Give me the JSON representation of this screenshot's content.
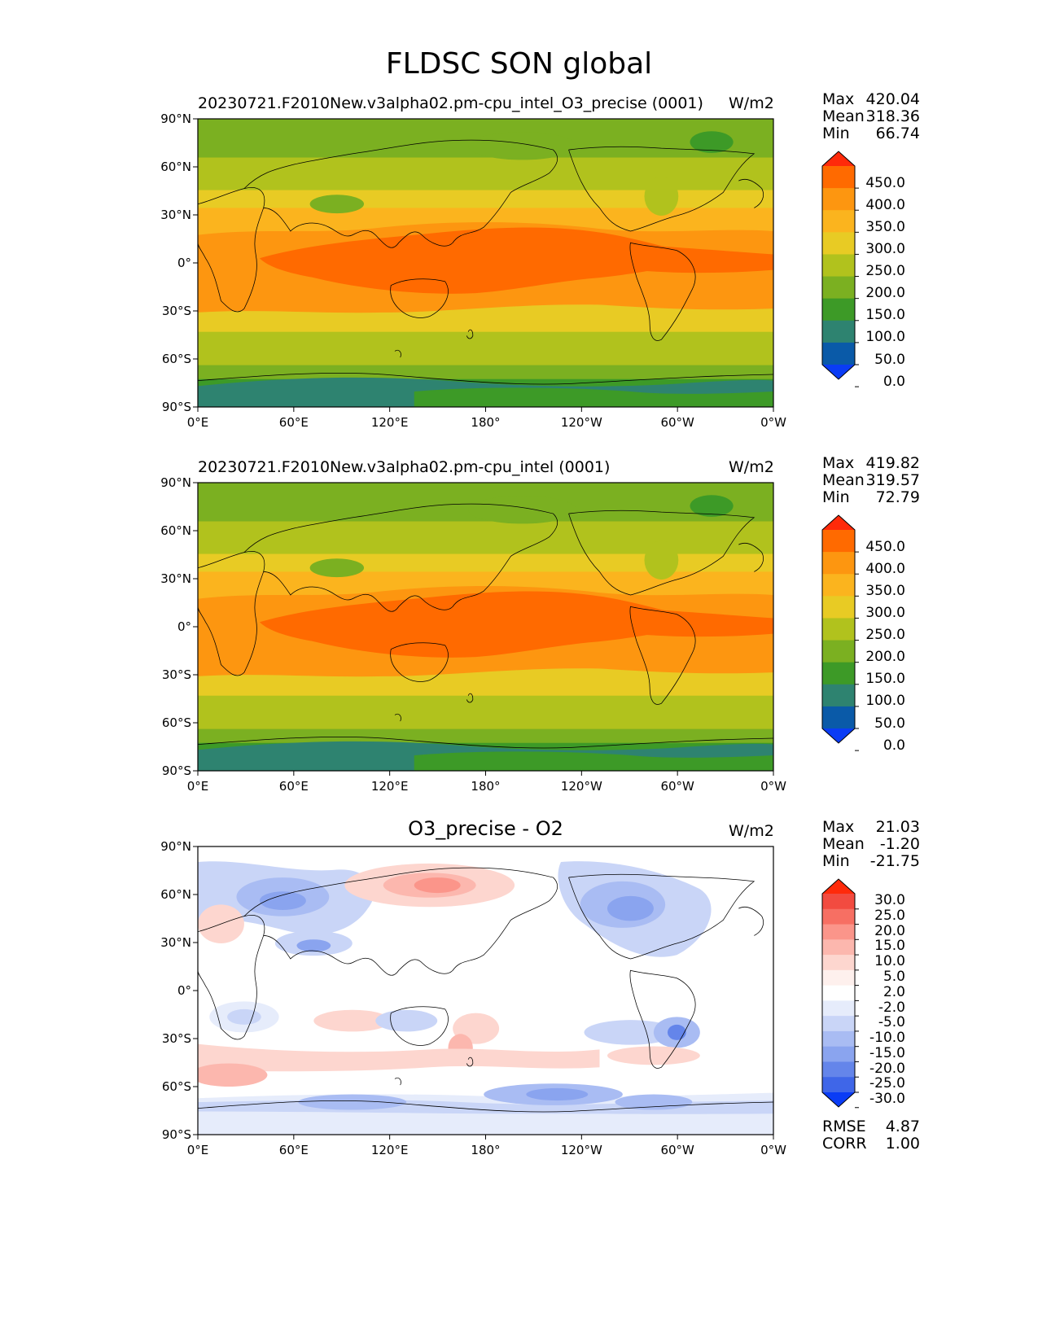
{
  "figure": {
    "title": "FLDSC SON global"
  },
  "axes": {
    "lat_ticks": [
      "90°N",
      "60°N",
      "30°N",
      "0°",
      "30°S",
      "60°S",
      "90°S"
    ],
    "lon_ticks": [
      "0°E",
      "60°E",
      "120°E",
      "180°",
      "120°W",
      "60°W",
      "0°W"
    ]
  },
  "panels": [
    {
      "title": "20230721.F2010New.v3alpha02.pm-cpu_intel_O3_precise (0001)",
      "units": "W/m2",
      "stats": {
        "max_label": "Max",
        "max": "420.04",
        "mean_label": "Mean",
        "mean": "318.36",
        "min_label": "Min",
        "min": "66.74"
      },
      "colorbar": {
        "labels": [
          "450.0",
          "400.0",
          "350.0",
          "300.0",
          "250.0",
          "200.0",
          "150.0",
          "100.0",
          "50.0",
          "0.0"
        ],
        "colors": [
          "#ff2a0a",
          "#ff6a00",
          "#fd9610",
          "#fbb41e",
          "#e8cb24",
          "#b1c21d",
          "#7bb021",
          "#3d9a27",
          "#2e8370",
          "#0a5aa8",
          "#0a3cf5"
        ]
      }
    },
    {
      "title": "20230721.F2010New.v3alpha02.pm-cpu_intel (0001)",
      "units": "W/m2",
      "stats": {
        "max_label": "Max",
        "max": "419.82",
        "mean_label": "Mean",
        "mean": "319.57",
        "min_label": "Min",
        "min": "72.79"
      },
      "colorbar": {
        "labels": [
          "450.0",
          "400.0",
          "350.0",
          "300.0",
          "250.0",
          "200.0",
          "150.0",
          "100.0",
          "50.0",
          "0.0"
        ],
        "colors": [
          "#ff2a0a",
          "#ff6a00",
          "#fd9610",
          "#fbb41e",
          "#e8cb24",
          "#b1c21d",
          "#7bb021",
          "#3d9a27",
          "#2e8370",
          "#0a5aa8",
          "#0a3cf5"
        ]
      }
    },
    {
      "title": "O3_precise - O2",
      "units": "W/m2",
      "stats": {
        "max_label": "Max",
        "max": "21.03",
        "mean_label": "Mean",
        "mean": "-1.20",
        "min_label": "Min",
        "min": "-21.75"
      },
      "extra_stats": {
        "rmse_label": "RMSE",
        "rmse": "4.87",
        "corr_label": "CORR",
        "corr": "1.00"
      },
      "colorbar": {
        "labels": [
          "30.0",
          "25.0",
          "20.0",
          "15.0",
          "10.0",
          "5.0",
          "2.0",
          "-2.0",
          "-5.0",
          "-10.0",
          "-15.0",
          "-20.0",
          "-25.0",
          "-30.0"
        ],
        "colors": [
          "#ff2a0a",
          "#f24b40",
          "#f76f63",
          "#fb958a",
          "#fcb7ae",
          "#fdd6cf",
          "#fef0ed",
          "#ffffff",
          "#e6ecfb",
          "#c9d5f7",
          "#a9bcf3",
          "#8aa4ef",
          "#6485ea",
          "#3f66e8",
          "#0a3cf5"
        ]
      }
    }
  ]
}
